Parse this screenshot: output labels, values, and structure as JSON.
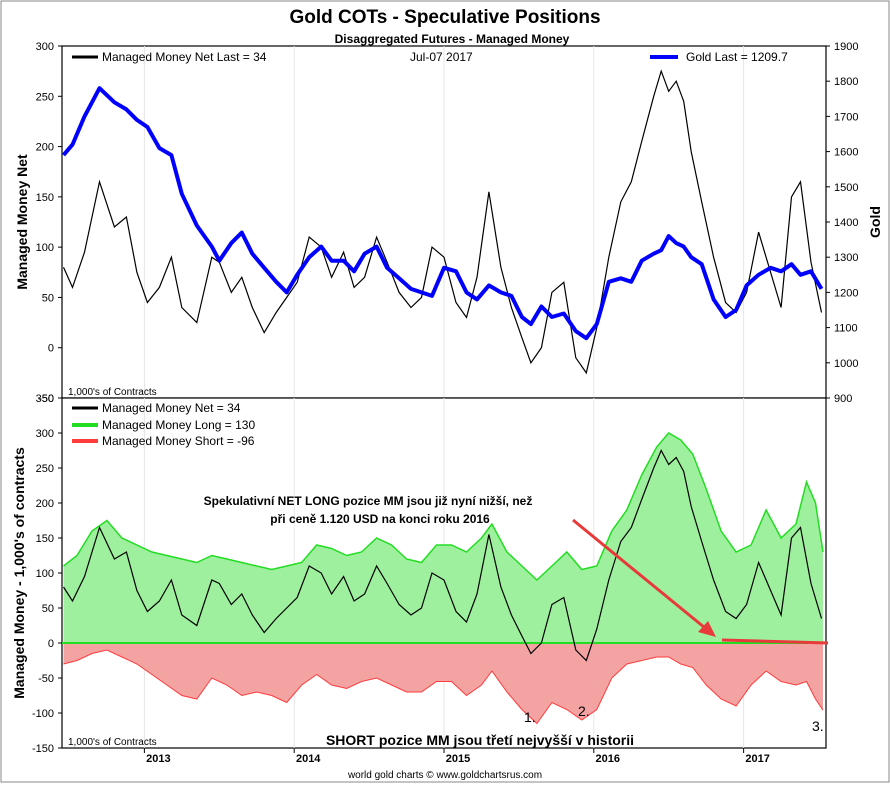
{
  "title": "Gold COTs - Speculative Positions",
  "subtitle": "Disaggregated Futures - Managed Money",
  "footer": "world gold charts © www.goldchartsrus.com",
  "colors": {
    "net": "#000000",
    "gold": "#0000ff",
    "long": "#22dd22",
    "long_fill": "#9ef09e",
    "short": "#ff3b3b",
    "short_fill": "#f4a3a3",
    "arrow": "#e83a3a"
  },
  "chart_data": [
    {
      "type": "line",
      "title": "Managed Money Net vs Gold",
      "ylabel": "Managed Money Net",
      "y2label": "Gold",
      "units_note": "1,000's of Contracts",
      "ylim": [
        -50,
        300
      ],
      "y2lim": [
        900,
        1900
      ],
      "yticks": [
        -50,
        0,
        50,
        100,
        150,
        200,
        250,
        300
      ],
      "y2ticks": [
        900,
        1000,
        1100,
        1200,
        1300,
        1400,
        1500,
        1600,
        1700,
        1800,
        1900
      ],
      "xlim": [
        2012.45,
        2017.55
      ],
      "legend": {
        "net": "Managed Money Net   Last = 34",
        "date": "Jul-07  2017",
        "gold": "Gold Last = 1209.7"
      },
      "series": [
        {
          "name": "Managed Money Net",
          "axis": "left",
          "x": [
            2012.46,
            2012.52,
            2012.6,
            2012.7,
            2012.8,
            2012.88,
            2012.95,
            2013.02,
            2013.1,
            2013.18,
            2013.25,
            2013.35,
            2013.45,
            2013.5,
            2013.58,
            2013.65,
            2013.72,
            2013.8,
            2013.88,
            2013.95,
            2014.02,
            2014.1,
            2014.18,
            2014.25,
            2014.33,
            2014.4,
            2014.47,
            2014.55,
            2014.62,
            2014.7,
            2014.78,
            2014.85,
            2014.92,
            2015.0,
            2015.08,
            2015.15,
            2015.22,
            2015.3,
            2015.38,
            2015.45,
            2015.52,
            2015.58,
            2015.65,
            2015.72,
            2015.8,
            2015.88,
            2015.95,
            2016.02,
            2016.1,
            2016.18,
            2016.25,
            2016.32,
            2016.4,
            2016.45,
            2016.5,
            2016.55,
            2016.6,
            2016.65,
            2016.72,
            2016.8,
            2016.88,
            2016.95,
            2017.02,
            2017.1,
            2017.18,
            2017.25,
            2017.32,
            2017.38,
            2017.45,
            2017.52
          ],
          "values": [
            80,
            60,
            95,
            165,
            120,
            130,
            75,
            45,
            60,
            90,
            40,
            25,
            90,
            85,
            55,
            70,
            40,
            15,
            35,
            50,
            65,
            110,
            100,
            70,
            95,
            60,
            70,
            110,
            85,
            55,
            40,
            50,
            100,
            90,
            45,
            30,
            70,
            155,
            80,
            40,
            10,
            -15,
            0,
            55,
            65,
            -10,
            -25,
            20,
            90,
            145,
            165,
            205,
            250,
            275,
            255,
            265,
            245,
            195,
            145,
            90,
            45,
            35,
            55,
            115,
            75,
            40,
            150,
            165,
            85,
            35
          ]
        },
        {
          "name": "Gold",
          "axis": "right",
          "x": [
            2012.46,
            2012.52,
            2012.6,
            2012.7,
            2012.8,
            2012.88,
            2012.95,
            2013.02,
            2013.1,
            2013.18,
            2013.25,
            2013.35,
            2013.45,
            2013.5,
            2013.58,
            2013.65,
            2013.72,
            2013.8,
            2013.88,
            2013.95,
            2014.02,
            2014.1,
            2014.18,
            2014.25,
            2014.33,
            2014.4,
            2014.47,
            2014.55,
            2014.62,
            2014.7,
            2014.78,
            2014.85,
            2014.92,
            2015.0,
            2015.08,
            2015.15,
            2015.22,
            2015.3,
            2015.38,
            2015.45,
            2015.52,
            2015.58,
            2015.65,
            2015.72,
            2015.8,
            2015.88,
            2015.95,
            2016.02,
            2016.1,
            2016.18,
            2016.25,
            2016.32,
            2016.4,
            2016.45,
            2016.5,
            2016.55,
            2016.6,
            2016.65,
            2016.72,
            2016.8,
            2016.88,
            2016.95,
            2017.02,
            2017.1,
            2017.18,
            2017.25,
            2017.32,
            2017.38,
            2017.45,
            2017.52
          ],
          "values": [
            1590,
            1620,
            1700,
            1780,
            1740,
            1720,
            1690,
            1670,
            1610,
            1590,
            1480,
            1390,
            1330,
            1290,
            1340,
            1370,
            1310,
            1270,
            1230,
            1200,
            1250,
            1300,
            1330,
            1290,
            1290,
            1260,
            1310,
            1330,
            1270,
            1240,
            1210,
            1200,
            1190,
            1270,
            1260,
            1200,
            1180,
            1220,
            1200,
            1190,
            1130,
            1110,
            1160,
            1130,
            1140,
            1090,
            1070,
            1110,
            1230,
            1240,
            1230,
            1290,
            1310,
            1320,
            1360,
            1340,
            1330,
            1300,
            1280,
            1180,
            1130,
            1150,
            1220,
            1250,
            1270,
            1260,
            1280,
            1250,
            1260,
            1210
          ]
        }
      ]
    },
    {
      "type": "area",
      "ylabel": "Managed Money - 1,000's of contracts",
      "units_note": "1,000's of Contracts",
      "ylim": [
        -150,
        350
      ],
      "yticks": [
        -150,
        -100,
        -50,
        0,
        50,
        100,
        150,
        200,
        250,
        300,
        350
      ],
      "xlim": [
        2012.45,
        2017.55
      ],
      "xticks": [
        "2013",
        "2014",
        "2015",
        "2016",
        "2017"
      ],
      "series": [
        {
          "name": "Managed Money Net",
          "legend": "Managed Money Net     = 34",
          "x": [
            2012.46,
            2012.52,
            2012.6,
            2012.7,
            2012.8,
            2012.88,
            2012.95,
            2013.02,
            2013.1,
            2013.18,
            2013.25,
            2013.35,
            2013.45,
            2013.5,
            2013.58,
            2013.65,
            2013.72,
            2013.8,
            2013.88,
            2013.95,
            2014.02,
            2014.1,
            2014.18,
            2014.25,
            2014.33,
            2014.4,
            2014.47,
            2014.55,
            2014.62,
            2014.7,
            2014.78,
            2014.85,
            2014.92,
            2015.0,
            2015.08,
            2015.15,
            2015.22,
            2015.3,
            2015.38,
            2015.45,
            2015.52,
            2015.58,
            2015.65,
            2015.72,
            2015.8,
            2015.88,
            2015.95,
            2016.02,
            2016.1,
            2016.18,
            2016.25,
            2016.32,
            2016.4,
            2016.45,
            2016.5,
            2016.55,
            2016.6,
            2016.65,
            2016.72,
            2016.8,
            2016.88,
            2016.95,
            2017.02,
            2017.1,
            2017.18,
            2017.25,
            2017.32,
            2017.38,
            2017.45,
            2017.52
          ],
          "values": [
            80,
            60,
            95,
            165,
            120,
            130,
            75,
            45,
            60,
            90,
            40,
            25,
            90,
            85,
            55,
            70,
            40,
            15,
            35,
            50,
            65,
            110,
            100,
            70,
            95,
            60,
            70,
            110,
            85,
            55,
            40,
            50,
            100,
            90,
            45,
            30,
            70,
            155,
            80,
            40,
            10,
            -15,
            0,
            55,
            65,
            -10,
            -25,
            20,
            90,
            145,
            165,
            205,
            250,
            275,
            255,
            265,
            245,
            195,
            145,
            90,
            45,
            35,
            55,
            115,
            75,
            40,
            150,
            165,
            85,
            35
          ]
        },
        {
          "name": "Managed Money Long",
          "legend": "Managed Money Long  = 130",
          "x": [
            2012.46,
            2012.55,
            2012.65,
            2012.75,
            2012.85,
            2012.95,
            2013.05,
            2013.15,
            2013.25,
            2013.35,
            2013.45,
            2013.55,
            2013.65,
            2013.75,
            2013.85,
            2013.95,
            2014.05,
            2014.15,
            2014.25,
            2014.35,
            2014.45,
            2014.55,
            2014.65,
            2014.75,
            2014.85,
            2014.95,
            2015.05,
            2015.15,
            2015.25,
            2015.32,
            2015.42,
            2015.52,
            2015.62,
            2015.72,
            2015.82,
            2015.92,
            2016.02,
            2016.12,
            2016.22,
            2016.32,
            2016.42,
            2016.5,
            2016.58,
            2016.66,
            2016.75,
            2016.85,
            2016.95,
            2017.05,
            2017.15,
            2017.25,
            2017.35,
            2017.42,
            2017.48,
            2017.53
          ],
          "values": [
            110,
            125,
            160,
            175,
            150,
            140,
            130,
            125,
            120,
            115,
            125,
            120,
            115,
            110,
            105,
            110,
            115,
            140,
            135,
            125,
            130,
            150,
            140,
            120,
            115,
            140,
            140,
            130,
            150,
            170,
            130,
            110,
            90,
            110,
            130,
            105,
            110,
            160,
            190,
            240,
            280,
            300,
            290,
            270,
            220,
            160,
            130,
            140,
            190,
            150,
            170,
            230,
            200,
            130
          ]
        },
        {
          "name": "Managed Money Short",
          "legend": "Managed Money Short  = -96",
          "x": [
            2012.46,
            2012.55,
            2012.65,
            2012.75,
            2012.85,
            2012.95,
            2013.05,
            2013.15,
            2013.25,
            2013.35,
            2013.45,
            2013.55,
            2013.65,
            2013.75,
            2013.85,
            2013.95,
            2014.05,
            2014.15,
            2014.25,
            2014.35,
            2014.45,
            2014.55,
            2014.65,
            2014.75,
            2014.85,
            2014.95,
            2015.05,
            2015.15,
            2015.25,
            2015.32,
            2015.42,
            2015.52,
            2015.62,
            2015.72,
            2015.82,
            2015.92,
            2016.02,
            2016.12,
            2016.22,
            2016.32,
            2016.42,
            2016.5,
            2016.58,
            2016.66,
            2016.75,
            2016.85,
            2016.95,
            2017.05,
            2017.15,
            2017.25,
            2017.35,
            2017.42,
            2017.48,
            2017.53
          ],
          "values": [
            -30,
            -25,
            -15,
            -10,
            -20,
            -30,
            -45,
            -60,
            -75,
            -80,
            -50,
            -60,
            -75,
            -70,
            -75,
            -85,
            -60,
            -45,
            -60,
            -65,
            -55,
            -50,
            -60,
            -70,
            -70,
            -55,
            -55,
            -75,
            -60,
            -40,
            -70,
            -95,
            -115,
            -85,
            -95,
            -110,
            -95,
            -50,
            -30,
            -25,
            -20,
            -20,
            -30,
            -35,
            -60,
            -80,
            -90,
            -60,
            -40,
            -55,
            -60,
            -55,
            -80,
            -96
          ]
        }
      ],
      "annotations": {
        "net_long_text_1": "Spekulativní NET LONG pozice MM jsou již nyní nižší, než",
        "net_long_text_2": "při ceně 1.120 USD na konci roku 2016",
        "short_text": "SHORT pozice MM jsou třetí nejvyšší v historii",
        "marker_1": "1.",
        "marker_2": "2.",
        "marker_3": "3."
      }
    }
  ]
}
